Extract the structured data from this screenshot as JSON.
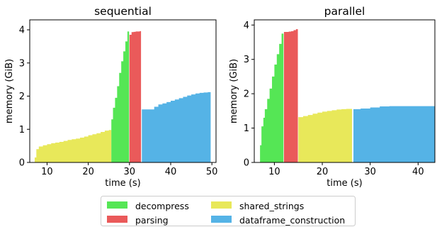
{
  "chart_data": [
    {
      "type": "area",
      "title": "sequential",
      "xlabel": "time (s)",
      "ylabel": "memory (GiB)",
      "xlim": [
        5.8,
        51
      ],
      "ylim": [
        0,
        4.3
      ],
      "xticks": [
        10,
        20,
        30,
        40,
        50
      ],
      "yticks": [
        0,
        1,
        2,
        3,
        4
      ],
      "grid": false,
      "series": [
        {
          "name": "shared_strings",
          "color": "#e8e85a",
          "x": [
            7,
            7.4,
            8,
            9,
            10,
            11,
            12,
            13,
            14,
            15,
            16,
            17,
            18,
            19,
            20,
            21,
            22,
            23,
            24,
            25,
            25.6
          ],
          "y": [
            0.15,
            0.4,
            0.48,
            0.52,
            0.55,
            0.58,
            0.6,
            0.62,
            0.65,
            0.68,
            0.7,
            0.72,
            0.75,
            0.78,
            0.82,
            0.85,
            0.88,
            0.92,
            0.96,
            0.98,
            1.0
          ]
        },
        {
          "name": "decompress",
          "color": "#55e655",
          "x": [
            25.6,
            26.0,
            26.5,
            27.0,
            27.5,
            28.0,
            28.5,
            29.0,
            29.5,
            29.9
          ],
          "y": [
            1.3,
            1.65,
            1.95,
            2.3,
            2.7,
            3.05,
            3.35,
            3.65,
            3.95,
            4.15
          ]
        },
        {
          "name": "parsing",
          "color": "#ea5a5a",
          "x": [
            30.0,
            30.5,
            31.0,
            31.5,
            32.0,
            32.5,
            32.8
          ],
          "y": [
            3.85,
            3.93,
            3.94,
            3.95,
            3.95,
            3.96,
            3.96
          ]
        },
        {
          "name": "dataframe_construction",
          "color": "#55b3e6",
          "x": [
            33.0,
            34,
            35,
            36,
            37,
            38,
            39,
            40,
            41,
            42,
            43,
            44,
            45,
            46,
            47,
            48,
            49,
            49.7
          ],
          "y": [
            1.6,
            1.6,
            1.6,
            1.68,
            1.75,
            1.78,
            1.82,
            1.86,
            1.9,
            1.94,
            1.98,
            2.02,
            2.05,
            2.08,
            2.1,
            2.11,
            2.12,
            2.14
          ]
        }
      ]
    },
    {
      "type": "area",
      "title": "parallel",
      "xlabel": "time (s)",
      "ylabel": "memory (GiB)",
      "xlim": [
        5.8,
        43.5
      ],
      "ylim": [
        0,
        4.15
      ],
      "xticks": [
        10,
        20,
        30,
        40
      ],
      "yticks": [
        0,
        1,
        2,
        3,
        4
      ],
      "grid": false,
      "series": [
        {
          "name": "decompress",
          "color": "#55e655",
          "x": [
            7.0,
            7.3,
            7.7,
            8.0,
            8.5,
            9.0,
            9.5,
            10.0,
            10.5,
            11.0,
            11.5,
            11.9
          ],
          "y": [
            0.5,
            1.05,
            1.3,
            1.55,
            1.85,
            2.15,
            2.5,
            2.85,
            3.15,
            3.45,
            3.75,
            3.95
          ]
        },
        {
          "name": "parsing",
          "color": "#ea5a5a",
          "x": [
            12.0,
            12.5,
            13.0,
            13.5,
            14.0,
            14.5,
            14.9
          ],
          "y": [
            3.8,
            3.8,
            3.81,
            3.82,
            3.85,
            3.88,
            3.9
          ]
        },
        {
          "name": "shared_strings",
          "color": "#e8e85a",
          "x": [
            15.0,
            15.5,
            16,
            17,
            18,
            19,
            20,
            21,
            22,
            23,
            24,
            25,
            26.2
          ],
          "y": [
            1.32,
            1.32,
            1.35,
            1.38,
            1.42,
            1.45,
            1.48,
            1.5,
            1.52,
            1.54,
            1.55,
            1.56,
            1.57
          ]
        },
        {
          "name": "dataframe_construction",
          "color": "#55b3e6",
          "x": [
            26.5,
            28,
            30,
            32,
            34,
            36,
            38,
            40,
            42,
            43.5
          ],
          "y": [
            1.55,
            1.57,
            1.6,
            1.63,
            1.64,
            1.64,
            1.64,
            1.64,
            1.64,
            1.64
          ]
        }
      ]
    }
  ],
  "legend": {
    "placement": "bottom-center",
    "entries": [
      {
        "label": "decompress",
        "color": "#55e655"
      },
      {
        "label": "shared_strings",
        "color": "#e8e85a"
      },
      {
        "label": "parsing",
        "color": "#ea5a5a"
      },
      {
        "label": "dataframe_construction",
        "color": "#55b3e6"
      }
    ]
  }
}
